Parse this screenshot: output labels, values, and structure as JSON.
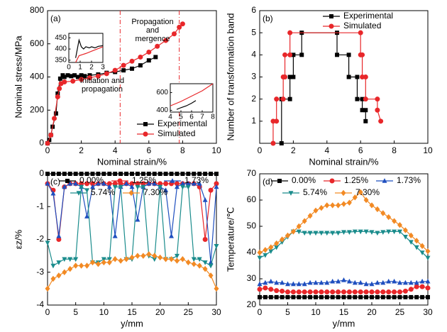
{
  "chart_data": [
    {
      "type": "line",
      "panel_label": "(a)",
      "xlabel": "Nominal strain/%",
      "ylabel": "Nominal stress/MPa",
      "xlim": [
        0,
        10
      ],
      "xticks": [
        0,
        2,
        4,
        6,
        8,
        10
      ],
      "ylim": [
        0,
        800
      ],
      "yticks": [
        0,
        200,
        400,
        600,
        800
      ],
      "legend": "lower right",
      "vlines": [
        4.3,
        7.8
      ],
      "vline_color": "#e8272a",
      "annotations": [
        "Propagation and mergence",
        "Initiation and propagation"
      ],
      "series": [
        {
          "name": "Experimental",
          "color": "#000000",
          "marker": "square",
          "x": [
            0,
            0.1,
            0.2,
            0.3,
            0.5,
            0.6,
            0.75,
            0.9,
            1.0,
            1.2,
            1.4,
            1.6,
            1.8,
            2.0,
            2.2,
            2.5,
            3.0,
            3.5,
            4.0,
            4.5,
            5.0,
            5.5,
            6.0,
            6.4
          ],
          "values": [
            0,
            20,
            50,
            100,
            180,
            300,
            390,
            410,
            400,
            410,
            405,
            410,
            400,
            410,
            405,
            410,
            415,
            425,
            430,
            440,
            450,
            470,
            500,
            520
          ]
        },
        {
          "name": "Simulated",
          "color": "#e8272a",
          "marker": "circle",
          "x": [
            0,
            0.2,
            0.4,
            0.6,
            0.7,
            0.8,
            1.0,
            1.5,
            2.0,
            2.5,
            3.0,
            3.5,
            4.0,
            4.5,
            5.0,
            5.5,
            6.0,
            6.5,
            7.0,
            7.5,
            7.8,
            8.0
          ],
          "values": [
            0,
            50,
            150,
            280,
            330,
            360,
            370,
            375,
            385,
            395,
            405,
            420,
            440,
            470,
            495,
            520,
            550,
            585,
            620,
            660,
            700,
            720
          ]
        }
      ],
      "insets": [
        {
          "xlim": [
            0,
            3
          ],
          "xticks": [
            0,
            1,
            2,
            3
          ],
          "ylim": [
            340,
            470
          ],
          "yticks": [
            350,
            400,
            450
          ],
          "series": [
            {
              "color": "#000000",
              "x": [
                0.6,
                0.9,
                1.1,
                1.3,
                1.5,
                1.8,
                2.0,
                2.3,
                2.6,
                3.0
              ],
              "values": [
                360,
                440,
                410,
                400,
                410,
                405,
                410,
                405,
                412,
                415
              ]
            },
            {
              "color": "#e8272a",
              "x": [
                0.6,
                0.9,
                1.2,
                1.5,
                2.0,
                2.5,
                3.0
              ],
              "values": [
                340,
                370,
                375,
                380,
                390,
                400,
                410
              ]
            }
          ]
        },
        {
          "xlim": [
            4,
            8
          ],
          "xticks": [
            4,
            5,
            6,
            7,
            8
          ],
          "ylim": [
            380,
            700
          ],
          "yticks": [
            400,
            600
          ],
          "series": [
            {
              "color": "#000000",
              "x": [
                4.6,
                5.0,
                5.5,
                6.0,
                6.4
              ],
              "values": [
                410,
                430,
                450,
                480,
                510
              ]
            },
            {
              "color": "#e8272a",
              "x": [
                4.0,
                5.0,
                6.0,
                7.0,
                8.0
              ],
              "values": [
                450,
                500,
                560,
                620,
                700
              ]
            }
          ]
        }
      ]
    },
    {
      "type": "line",
      "panel_label": "(b)",
      "xlabel": "Nominal strain/%",
      "ylabel": "Number of transformation band",
      "xlim": [
        0,
        10
      ],
      "xticks": [
        0,
        2,
        4,
        6,
        8,
        10
      ],
      "ylim": [
        0,
        6
      ],
      "yticks": [
        1,
        2,
        3,
        4,
        5,
        6
      ],
      "legend": "upper right",
      "series": [
        {
          "name": "Experimental",
          "color": "#000000",
          "marker": "square",
          "x": [
            1.3,
            1.3,
            1.8,
            1.8,
            2.0,
            2.0,
            2.5,
            2.5,
            4.6,
            4.6,
            5.3,
            5.3,
            5.8,
            5.8,
            6.1,
            6.1,
            6.3,
            6.3
          ],
          "values": [
            0,
            2,
            2,
            3,
            3,
            4,
            4,
            5,
            5,
            4,
            4,
            3,
            3,
            2,
            2,
            1.5,
            1.5,
            1
          ]
        },
        {
          "name": "Simulated",
          "color": "#e8272a",
          "marker": "circle",
          "x": [
            0.8,
            0.8,
            1.0,
            1.0,
            1.4,
            1.4,
            1.5,
            1.5,
            1.8,
            1.8,
            6.0,
            6.0,
            6.1,
            6.1,
            6.3,
            6.3,
            7.0,
            7.0,
            7.2
          ],
          "values": [
            0,
            1,
            1,
            2,
            2,
            3,
            3,
            4,
            4,
            5,
            5,
            4,
            4,
            3,
            3,
            2,
            2,
            1.5,
            1
          ]
        }
      ]
    },
    {
      "type": "line",
      "panel_label": "(c)",
      "xlabel": "y/mm",
      "ylabel": "εz/%",
      "xlim": [
        0,
        30
      ],
      "xticks": [
        0,
        5,
        10,
        15,
        20,
        25,
        30
      ],
      "ylim": [
        -4,
        0
      ],
      "yticks": [
        -4,
        -3,
        -2,
        -1,
        0
      ],
      "legend": "upper center",
      "x": [
        0,
        1,
        2,
        3,
        4,
        5,
        6,
        7,
        8,
        9,
        10,
        11,
        12,
        13,
        14,
        15,
        16,
        17,
        18,
        19,
        20,
        21,
        22,
        23,
        24,
        25,
        26,
        27,
        28,
        29,
        30
      ],
      "series": [
        {
          "name": "0.00%",
          "color": "#000000",
          "marker": "square",
          "values": [
            0,
            0,
            0,
            0,
            0,
            0,
            0,
            0,
            0,
            0,
            0,
            0,
            0,
            0,
            0,
            0,
            0,
            0,
            0,
            0,
            0,
            0,
            0,
            0,
            0,
            0,
            0,
            0,
            0,
            0,
            0
          ]
        },
        {
          "name": "1.25%",
          "color": "#e8272a",
          "marker": "circle",
          "values": [
            -0.3,
            -0.5,
            -2.0,
            -0.4,
            -0.3,
            -0.3,
            -0.3,
            -0.3,
            -0.3,
            -0.3,
            -0.3,
            -0.3,
            -0.3,
            -0.3,
            -0.3,
            -0.3,
            -0.3,
            -0.3,
            -0.3,
            -0.3,
            -0.3,
            -0.3,
            -0.3,
            -0.3,
            -0.3,
            -0.3,
            -0.3,
            -0.4,
            -2.0,
            -0.5,
            -0.3
          ]
        },
        {
          "name": "1.73%",
          "color": "#1f4fbf",
          "marker": "triangle-up",
          "values": [
            -0.3,
            -0.6,
            -1.9,
            -0.4,
            -0.3,
            -0.3,
            -0.4,
            -1.3,
            -0.4,
            -0.3,
            -0.3,
            -0.4,
            -1.9,
            -0.4,
            -0.3,
            -0.4,
            -1.4,
            -0.4,
            -0.3,
            -0.3,
            -0.4,
            -0.5,
            -1.9,
            -0.4,
            -0.3,
            -0.3,
            -0.3,
            -0.3,
            -0.8,
            -2.7,
            -0.4
          ]
        },
        {
          "name": "5.74%",
          "color": "#1a8c8c",
          "marker": "triangle-down",
          "values": [
            -2.1,
            -2.8,
            -2.7,
            -2.6,
            -2.6,
            -2.6,
            -0.4,
            -0.5,
            -2.7,
            -2.7,
            -2.6,
            -2.6,
            -0.4,
            -0.4,
            -2.6,
            -2.6,
            -0.4,
            -0.4,
            -2.5,
            -2.6,
            -0.4,
            -2.6,
            -2.6,
            -2.5,
            -0.4,
            -0.4,
            -2.6,
            -2.6,
            -2.7,
            -2.8,
            -2.2
          ]
        },
        {
          "name": "7.30%",
          "color": "#f28a24",
          "marker": "diamond",
          "values": [
            -3.5,
            -3.2,
            -3.1,
            -3.0,
            -2.9,
            -2.8,
            -2.8,
            -2.8,
            -2.7,
            -2.75,
            -2.7,
            -2.7,
            -2.6,
            -2.65,
            -2.6,
            -2.55,
            -2.5,
            -2.5,
            -2.45,
            -2.5,
            -2.55,
            -2.6,
            -2.6,
            -2.65,
            -2.6,
            -2.7,
            -2.75,
            -2.8,
            -2.9,
            -3.1,
            -3.5
          ]
        }
      ]
    },
    {
      "type": "line",
      "panel_label": "(d)",
      "xlabel": "y/mm",
      "ylabel": "Temperature/℃",
      "xlim": [
        0,
        30
      ],
      "xticks": [
        0,
        5,
        10,
        15,
        20,
        25,
        30
      ],
      "ylim": [
        20,
        70
      ],
      "yticks": [
        20,
        30,
        40,
        50,
        60,
        70
      ],
      "legend": "upper center",
      "x": [
        0,
        1,
        2,
        3,
        4,
        5,
        6,
        7,
        8,
        9,
        10,
        11,
        12,
        13,
        14,
        15,
        16,
        17,
        18,
        19,
        20,
        21,
        22,
        23,
        24,
        25,
        26,
        27,
        28,
        29,
        30
      ],
      "series": [
        {
          "name": "0.00%",
          "color": "#000000",
          "marker": "square",
          "values": [
            23,
            23,
            23,
            23,
            23,
            23,
            23,
            23,
            23,
            23,
            23,
            23,
            23,
            23,
            23,
            23,
            23,
            23,
            23,
            23,
            23,
            23,
            23,
            23,
            23,
            23,
            23,
            23,
            23,
            23,
            23
          ]
        },
        {
          "name": "1.25%",
          "color": "#e8272a",
          "marker": "circle",
          "values": [
            26,
            26.5,
            26,
            25.5,
            25.3,
            25,
            25,
            25,
            25,
            25,
            25,
            25,
            25,
            25,
            25,
            25,
            25,
            25,
            25,
            25,
            25,
            25,
            25,
            25,
            25,
            25,
            25.3,
            26,
            27,
            27,
            26.5
          ]
        },
        {
          "name": "1.73%",
          "color": "#1f4fbf",
          "marker": "triangle-up",
          "values": [
            28,
            28.5,
            29,
            28.5,
            28.5,
            28,
            28,
            28,
            28,
            28.5,
            28.5,
            28.5,
            28.5,
            29,
            29,
            29.5,
            29,
            28.5,
            28.5,
            28,
            28,
            28.5,
            28.5,
            29,
            29,
            28.5,
            28.5,
            28.5,
            28.5,
            29,
            29
          ]
        },
        {
          "name": "5.74%",
          "color": "#1a8c8c",
          "marker": "triangle-down",
          "values": [
            38,
            39,
            40.5,
            42,
            44,
            46,
            48,
            48,
            47.5,
            47.5,
            47.5,
            47.5,
            47.5,
            47.5,
            47.5,
            47.8,
            47.8,
            48,
            48,
            48,
            47.8,
            47.5,
            47.8,
            48,
            48,
            48,
            46,
            44,
            42,
            40,
            38
          ]
        },
        {
          "name": "7.30%",
          "color": "#f28a24",
          "marker": "diamond",
          "values": [
            40,
            41,
            42,
            43.5,
            45,
            46.5,
            48,
            50,
            52,
            54,
            56,
            57,
            58,
            58,
            58,
            58.5,
            59,
            61,
            63,
            60,
            58,
            56.5,
            55,
            53.5,
            52,
            50.5,
            48.5,
            46.5,
            44.5,
            42.5,
            40.5
          ]
        }
      ]
    }
  ]
}
